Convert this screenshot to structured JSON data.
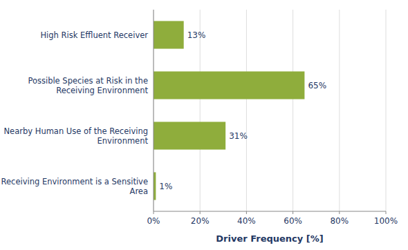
{
  "chart_data": {
    "type": "bar",
    "orientation": "horizontal",
    "categories": [
      "Receiving Environment is a Sensitive\n         Area",
      "Nearby Human  Use of the Receiving\n         Environment",
      "Possible Species at Risk in the\n    Receiving Environment",
      "High Risk Effluent Receiver"
    ],
    "values": [
      1,
      31,
      65,
      13
    ],
    "value_labels": [
      "1%",
      "31%",
      "65%",
      "13%"
    ],
    "data_labels": true,
    "color": "#8fad3c",
    "xlabel": "Driver Frequency [%]",
    "xlim": [
      0,
      100
    ],
    "xticks": [
      {
        "value": 0,
        "label": "0%"
      },
      {
        "value": 20,
        "label": "20%"
      },
      {
        "value": 40,
        "label": "40%"
      },
      {
        "value": 60,
        "label": "60%"
      },
      {
        "value": 80,
        "label": "80%"
      },
      {
        "value": 100,
        "label": "100%"
      }
    ],
    "grid": true
  }
}
